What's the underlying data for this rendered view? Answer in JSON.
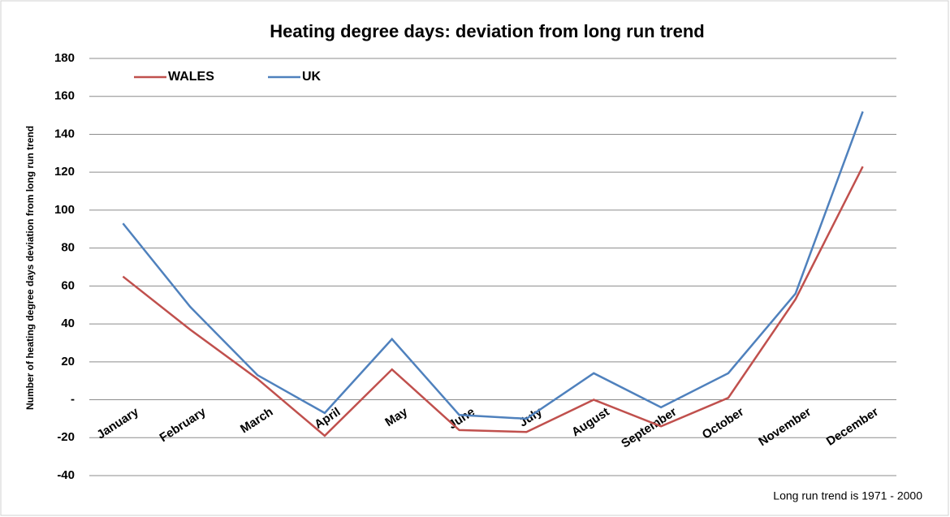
{
  "chart_data": {
    "type": "line",
    "title": "Heating degree days: deviation from long run trend",
    "y_label": "Number of heating degree days deviation from long run trend",
    "annotation": "Long run trend is 1971 - 2000",
    "categories": [
      "January",
      "February",
      "March",
      "April",
      "May",
      "June",
      "July",
      "August",
      "September",
      "October",
      "November",
      "December"
    ],
    "series": [
      {
        "name": "WALES",
        "color": "#c0504d",
        "values": [
          65,
          37,
          11,
          -19,
          16,
          -16,
          -17,
          0,
          -14,
          1,
          53,
          123
        ]
      },
      {
        "name": "UK",
        "color": "#4f81bd",
        "values": [
          93,
          49,
          13,
          -7,
          32,
          -8,
          -10,
          14,
          -4,
          14,
          56,
          152
        ]
      }
    ],
    "ylim": [
      -40,
      180
    ],
    "yticks": [
      -40,
      -20,
      {
        "value": 0,
        "label": "-"
      },
      20,
      40,
      60,
      80,
      100,
      120,
      140,
      160,
      180
    ],
    "grid": true
  }
}
